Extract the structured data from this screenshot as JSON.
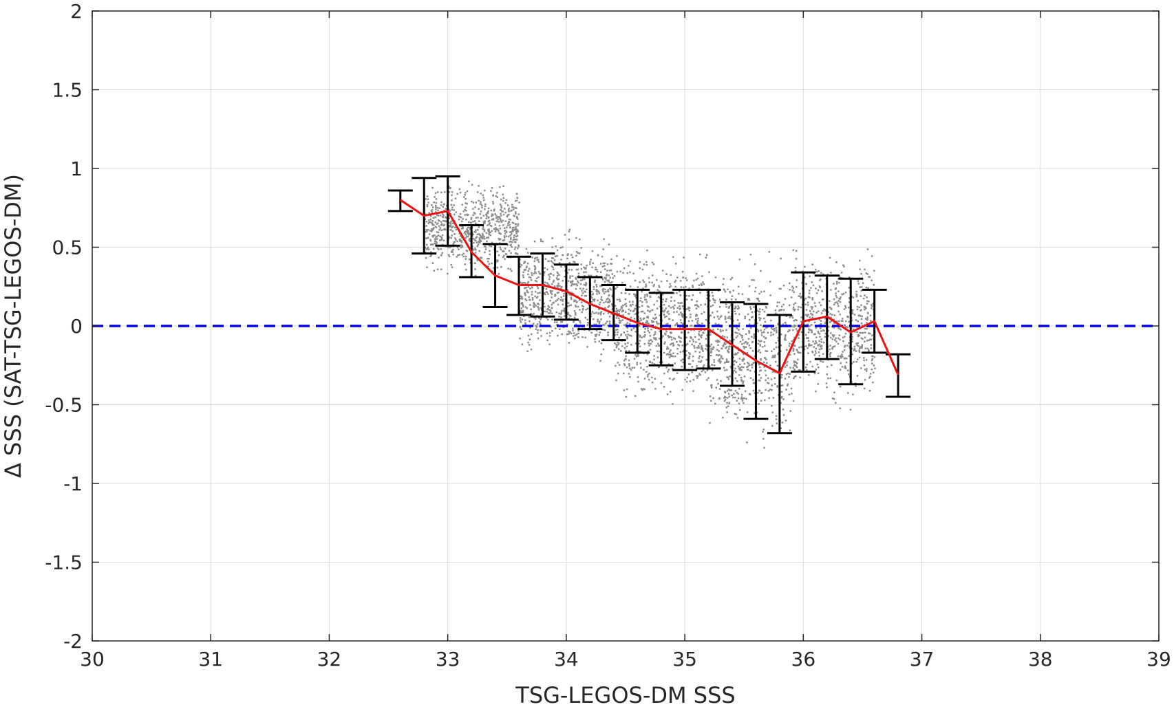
{
  "chart_data": {
    "type": "scatter",
    "xlabel": "TSG-LEGOS-DM SSS",
    "ylabel": "Δ SSS (SAT-TSG-LEGOS-DM)",
    "xlim": [
      30,
      39
    ],
    "ylim": [
      -2,
      2
    ],
    "xticks": [
      30,
      31,
      32,
      33,
      34,
      35,
      36,
      37,
      38,
      39
    ],
    "yticks": [
      -2,
      -1.5,
      -1,
      -0.5,
      0,
      0.5,
      1,
      1.5,
      2
    ],
    "xtick_labels": [
      "30",
      "31",
      "32",
      "33",
      "34",
      "35",
      "36",
      "37",
      "38",
      "39"
    ],
    "ytick_labels": [
      "-2",
      "-1.5",
      "-1",
      "-0.5",
      "0",
      "0.5",
      "1",
      "1.5",
      "2"
    ],
    "grid": true,
    "reference_line": {
      "y": 0,
      "style": "dashed",
      "color": "#0000e0"
    },
    "scatter": {
      "color": "#8c8c8c",
      "description_ranges": [
        {
          "x_from": 32.8,
          "x_to": 33.6,
          "y_center": 0.62,
          "spread": 0.22
        },
        {
          "x_from": 33.6,
          "x_to": 34.4,
          "y_center": 0.2,
          "spread": 0.3
        },
        {
          "x_from": 34.4,
          "x_to": 35.2,
          "y_center": 0.0,
          "spread": 0.35
        },
        {
          "x_from": 35.2,
          "x_to": 35.9,
          "y_center": -0.15,
          "spread": 0.45
        },
        {
          "x_from": 35.9,
          "x_to": 36.6,
          "y_center": 0.0,
          "spread": 0.35
        }
      ]
    },
    "mean_line": {
      "color": "#ee1111",
      "x": [
        32.6,
        32.8,
        33.0,
        33.2,
        33.4,
        33.6,
        33.8,
        34.0,
        34.2,
        34.4,
        34.6,
        34.8,
        35.0,
        35.2,
        35.4,
        35.6,
        35.8,
        36.0,
        36.2,
        36.4,
        36.6,
        36.8
      ],
      "y": [
        0.8,
        0.7,
        0.73,
        0.47,
        0.32,
        0.26,
        0.26,
        0.22,
        0.14,
        0.08,
        0.02,
        -0.02,
        -0.02,
        -0.02,
        -0.12,
        -0.22,
        -0.3,
        0.03,
        0.06,
        -0.04,
        0.03,
        -0.31
      ]
    },
    "error_bars": {
      "color": "#000000",
      "x": [
        32.6,
        32.8,
        33.0,
        33.2,
        33.4,
        33.6,
        33.8,
        34.0,
        34.2,
        34.4,
        34.6,
        34.8,
        35.0,
        35.2,
        35.4,
        35.6,
        35.8,
        36.0,
        36.2,
        36.4,
        36.6,
        36.8
      ],
      "upper": [
        0.86,
        0.94,
        0.95,
        0.64,
        0.52,
        0.44,
        0.46,
        0.39,
        0.31,
        0.26,
        0.23,
        0.21,
        0.23,
        0.23,
        0.15,
        0.14,
        0.07,
        0.34,
        0.32,
        0.3,
        0.23,
        -0.18
      ],
      "lower": [
        0.73,
        0.46,
        0.51,
        0.31,
        0.12,
        0.07,
        0.06,
        0.04,
        -0.02,
        -0.09,
        -0.17,
        -0.25,
        -0.28,
        -0.27,
        -0.38,
        -0.59,
        -0.68,
        -0.29,
        -0.21,
        -0.37,
        -0.17,
        -0.45
      ]
    }
  }
}
